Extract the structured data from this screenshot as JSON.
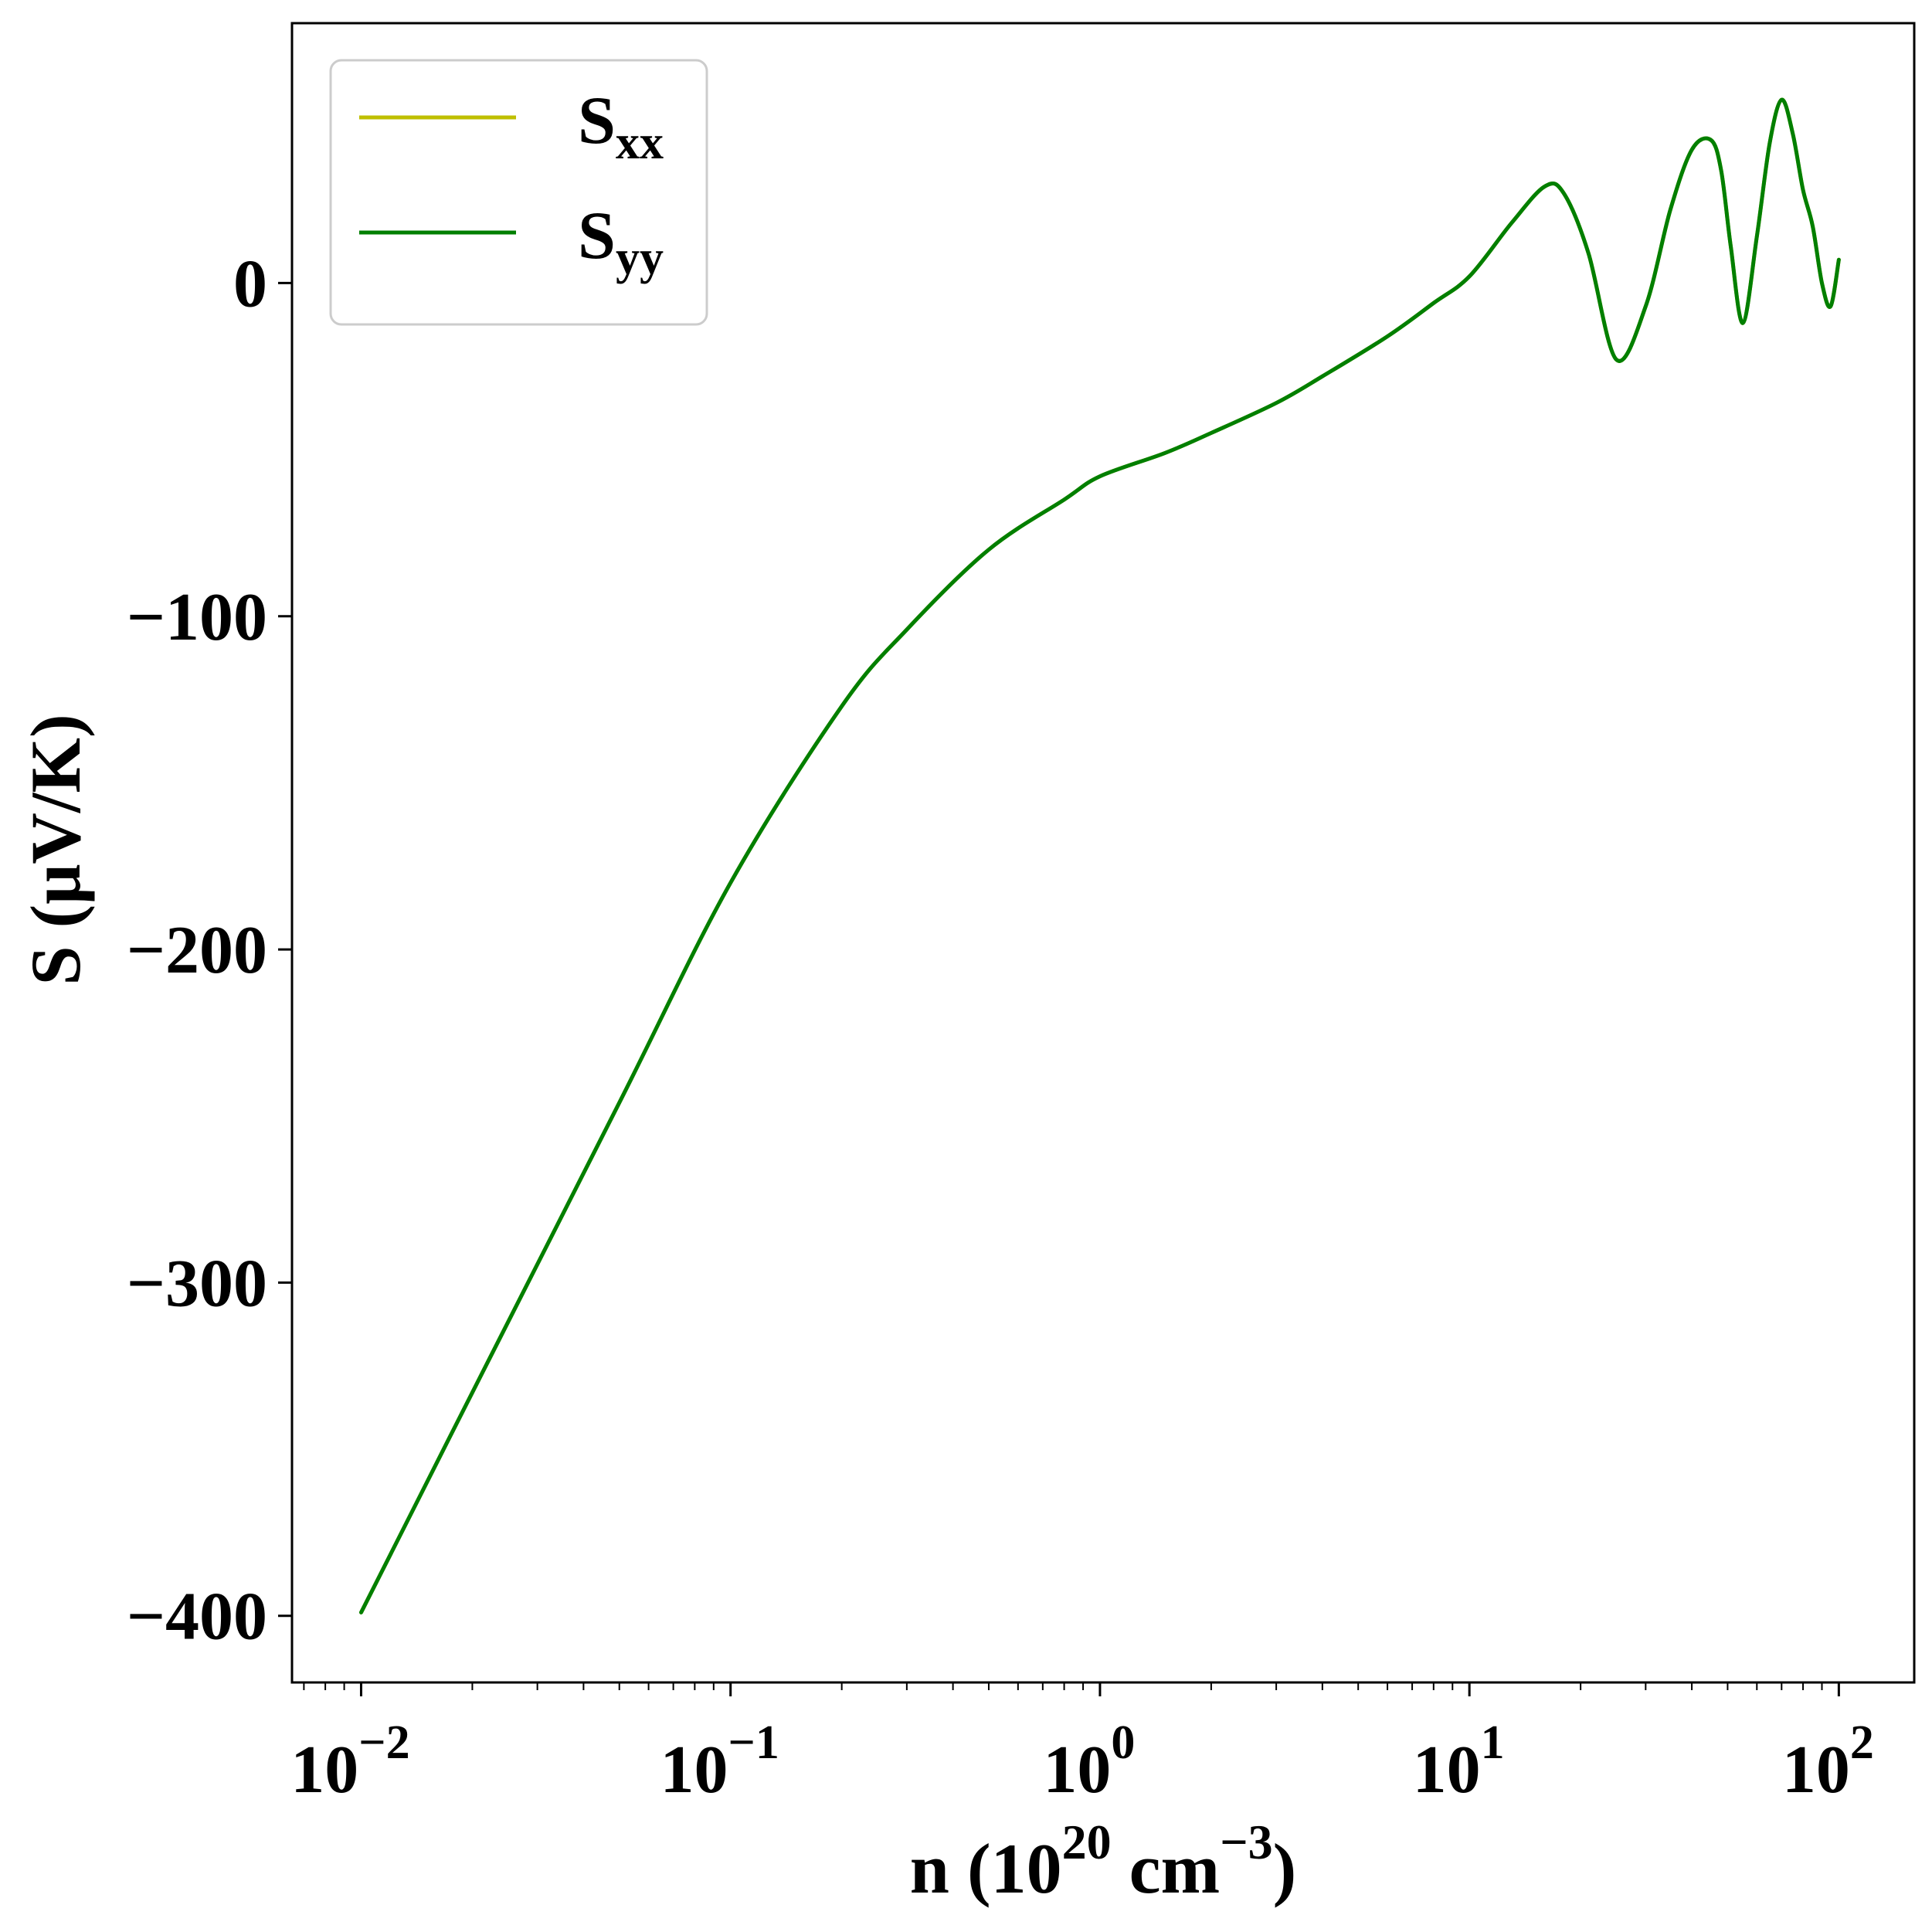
{
  "chart_data": {
    "type": "line",
    "xscale": "log",
    "xlim": [
      0.0065,
      160
    ],
    "ylim": [
      -420,
      78
    ],
    "xlabel": {
      "prefix": "n (10",
      "sup1": "20",
      "middle": " cm",
      "sup2": "−3",
      "suffix": ")"
    },
    "ylabel": "S (μV/K)",
    "xticks": [
      {
        "value": 0.01,
        "base": "10",
        "exp": "−2"
      },
      {
        "value": 0.1,
        "base": "10",
        "exp": "−1"
      },
      {
        "value": 1,
        "base": "10",
        "exp": "0"
      },
      {
        "value": 10,
        "base": "10",
        "exp": "1"
      },
      {
        "value": 100,
        "base": "10",
        "exp": "2"
      }
    ],
    "yticks": [
      {
        "value": 0,
        "label": "0"
      },
      {
        "value": -100,
        "label": "−100"
      },
      {
        "value": -200,
        "label": "−200"
      },
      {
        "value": -300,
        "label": "−300"
      },
      {
        "value": -400,
        "label": "−400"
      }
    ],
    "grid": false,
    "legend_position": "top-left",
    "series": [
      {
        "name": "S",
        "name_sub": "xx",
        "color": "#bfbf00",
        "x": [
          0.01,
          0.02,
          0.05,
          0.1,
          0.2,
          0.3,
          0.5,
          0.8,
          1.0,
          1.5,
          2.0,
          3.0,
          4.0,
          6.0,
          8.0,
          10.0,
          13.0,
          16.0,
          18.0,
          21.0,
          25.0,
          30.0,
          35.0,
          40.0,
          45.0,
          48.0,
          51.0,
          55.0,
          60.0,
          65.0,
          70.0,
          75.0,
          80.0,
          85.0,
          90.0,
          95.0,
          100.0
        ],
        "y": [
          -399,
          -333,
          -246,
          -180,
          -127,
          -104,
          -80,
          -65,
          -58,
          -51,
          -45,
          -36,
          -28,
          -16,
          -6,
          2,
          18,
          29,
          27,
          9,
          -23,
          -7,
          22,
          40,
          43,
          34,
          11,
          -12,
          14,
          42,
          55,
          45,
          28,
          17,
          0,
          -7,
          7
        ]
      },
      {
        "name": "S",
        "name_sub": "yy",
        "color": "#007f00",
        "x": [
          0.01,
          0.02,
          0.05,
          0.1,
          0.2,
          0.3,
          0.5,
          0.8,
          1.0,
          1.5,
          2.0,
          3.0,
          4.0,
          6.0,
          8.0,
          10.0,
          13.0,
          16.0,
          18.0,
          21.0,
          25.0,
          30.0,
          35.0,
          40.0,
          45.0,
          48.0,
          51.0,
          55.0,
          60.0,
          65.0,
          70.0,
          75.0,
          80.0,
          85.0,
          90.0,
          95.0,
          100.0
        ],
        "y": [
          -399,
          -333,
          -246,
          -180,
          -127,
          -104,
          -80,
          -65,
          -58,
          -51,
          -45,
          -36,
          -28,
          -16,
          -6,
          2,
          18,
          29,
          27,
          9,
          -23,
          -7,
          22,
          40,
          43,
          34,
          11,
          -12,
          14,
          42,
          55,
          45,
          28,
          17,
          0,
          -7,
          7
        ]
      }
    ]
  }
}
